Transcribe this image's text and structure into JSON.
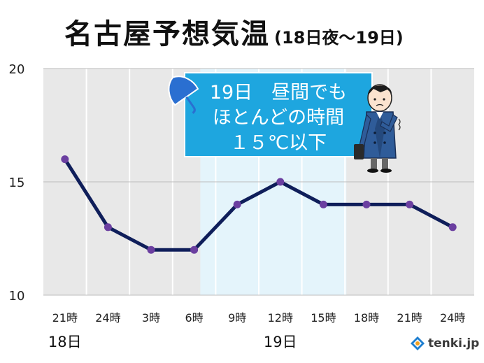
{
  "title": "名古屋予想気温",
  "subtitle": "(18日夜～19日)",
  "callout": {
    "lines": [
      "19日　昼間でも",
      "ほとんどの時間",
      "１５℃以下"
    ],
    "colors": {
      "box": "#1ea6df",
      "text": "#ffffff",
      "border": "#ffffff"
    }
  },
  "colors": {
    "plot_bg": "#e8e8e8",
    "highlight": "#e4f4fb",
    "grid": "#ffffff",
    "line": "#0f1e5a",
    "marker": "#6b3fa0",
    "text": "#222222"
  },
  "chart_data": {
    "type": "line",
    "categories": [
      "21時",
      "24時",
      "3時",
      "6時",
      "9時",
      "12時",
      "15時",
      "18時",
      "21時",
      "24時"
    ],
    "values": [
      16,
      13,
      12,
      12,
      14,
      15,
      14,
      14,
      14,
      13
    ],
    "ylim": [
      10,
      20
    ],
    "yticks": [
      "10",
      "15",
      "20"
    ],
    "highlight_range": [
      "6時",
      "18時"
    ],
    "day_labels": [
      {
        "label": "18日",
        "at": "21時"
      },
      {
        "label": "19日",
        "at": "12時"
      }
    ],
    "grid": true
  },
  "logo": {
    "text": "tenki.jp"
  }
}
